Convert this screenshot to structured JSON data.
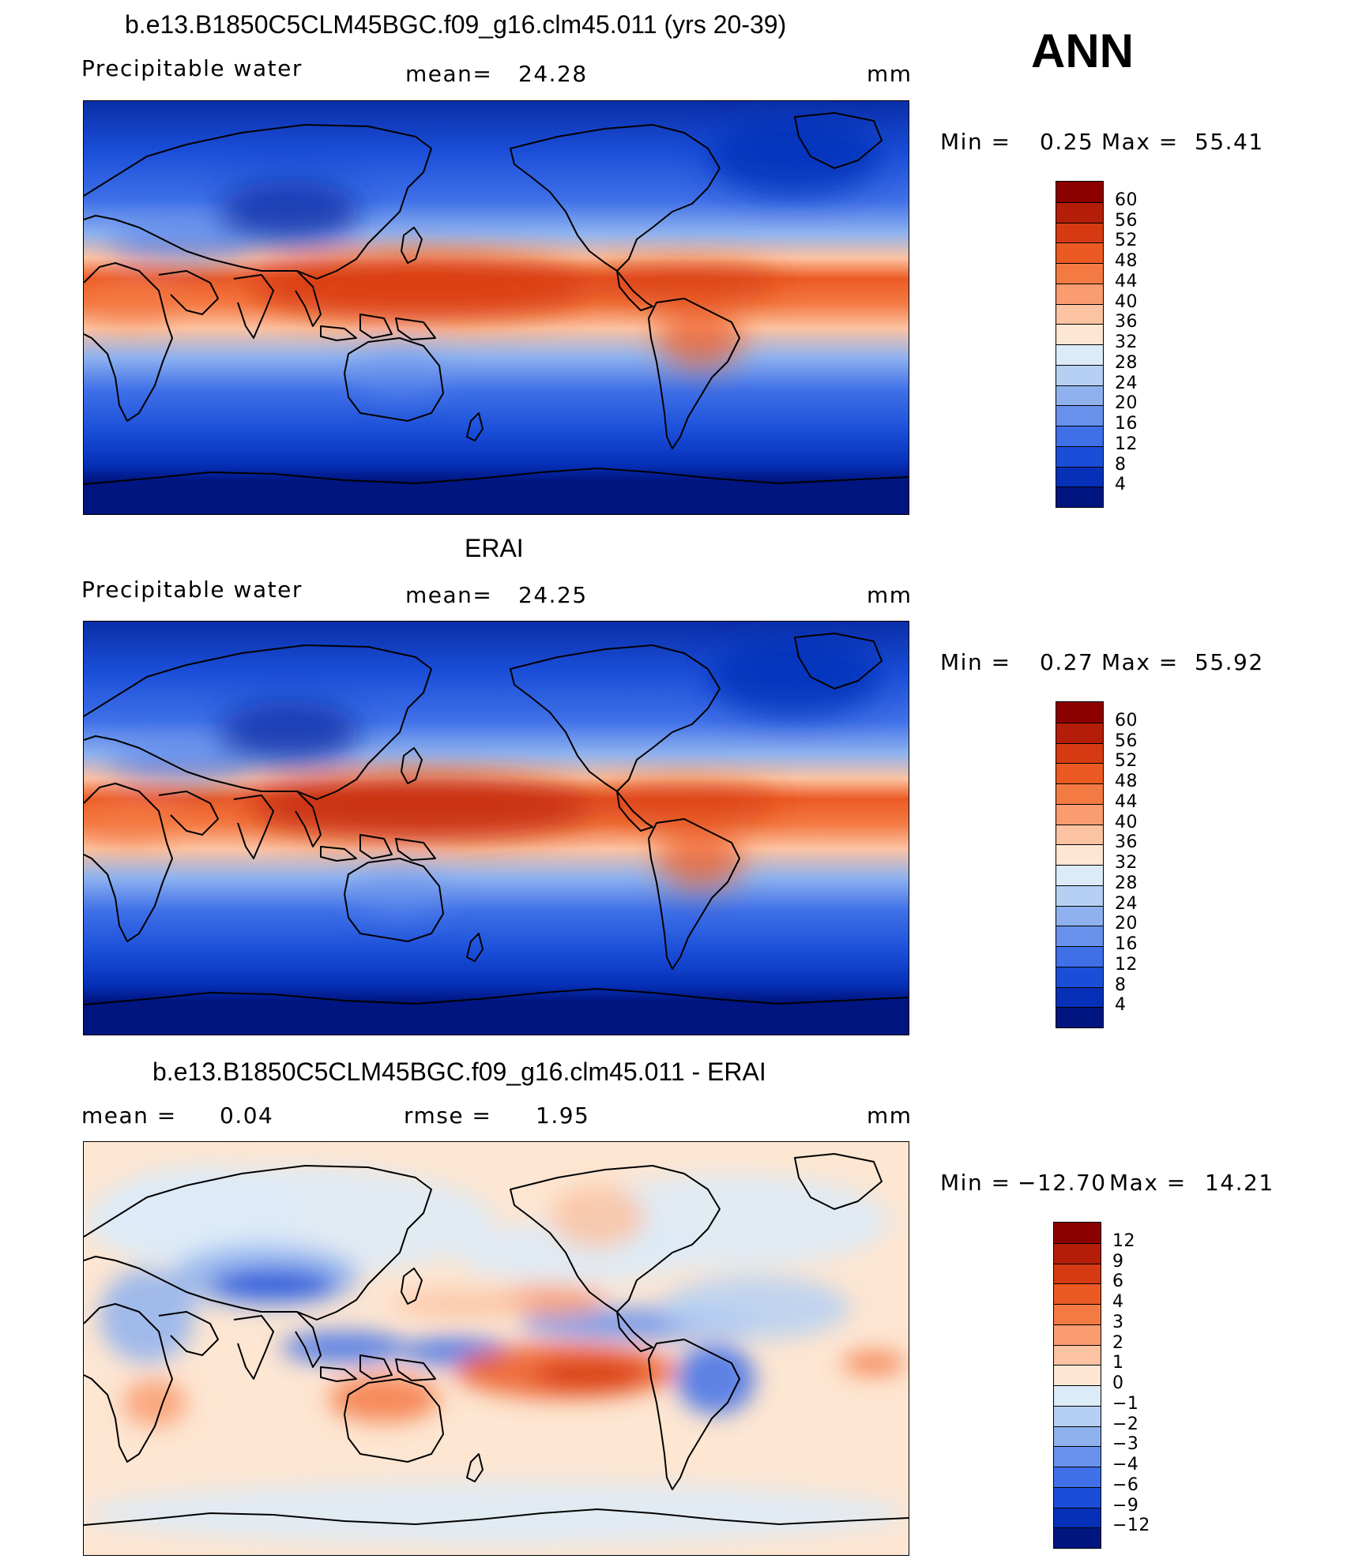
{
  "panels": [
    {
      "title": "b.e13.B1850C5CLM45BGC.f09_g16.clm45.011 (yrs 20-39)",
      "left_label": "Precipitable  water",
      "stat_label": "mean=",
      "stat_value": "24.28",
      "units": "mm",
      "min_label": "Min  =",
      "min_value": "0.25",
      "max_label": "Max  =",
      "max_value": "55.41",
      "field": "model"
    },
    {
      "title": "ERAI",
      "left_label": "Precipitable  water",
      "stat_label": "mean=",
      "stat_value": "24.25",
      "units": "mm",
      "min_label": "Min  =",
      "min_value": "0.27",
      "max_label": "Max  =",
      "max_value": "55.92",
      "field": "obs"
    },
    {
      "title": "b.e13.B1850C5CLM45BGC.f09_g16.clm45.011 - ERAI",
      "left_label": "mean  =",
      "left_value": "0.04",
      "stat_label": "rmse  =",
      "stat_value": "1.95",
      "units": "mm",
      "min_label": "Min  =",
      "min_value": "−12.70",
      "max_label": "Max  =",
      "max_value": "14.21",
      "field": "diff"
    }
  ],
  "season": "ANN",
  "colorbars": {
    "absolute": {
      "ticks": [
        "60",
        "56",
        "52",
        "48",
        "44",
        "40",
        "36",
        "32",
        "28",
        "24",
        "20",
        "16",
        "12",
        "8",
        "4"
      ],
      "colors": [
        "#8c0000",
        "#b41e08",
        "#d63a12",
        "#ec5a24",
        "#f47a44",
        "#f99c70",
        "#fcc3a2",
        "#fde6d2",
        "#dcebf8",
        "#b5d0f3",
        "#8fb2ef",
        "#6892ec",
        "#3f70e8",
        "#1a4ed8",
        "#0630b8",
        "#00157f"
      ]
    },
    "difference": {
      "ticks": [
        "12",
        "9",
        "6",
        "4",
        "3",
        "2",
        "1",
        "0",
        "−1",
        "−2",
        "−3",
        "−4",
        "−6",
        "−9",
        "−12"
      ],
      "colors": [
        "#8c0000",
        "#b41e08",
        "#d63a12",
        "#ec5a24",
        "#f47a44",
        "#f99c70",
        "#fcc3a2",
        "#fde6d2",
        "#dcebf8",
        "#b5d0f3",
        "#8fb2ef",
        "#6892ec",
        "#3f70e8",
        "#1a4ed8",
        "#0630b8",
        "#00157f"
      ]
    }
  }
}
